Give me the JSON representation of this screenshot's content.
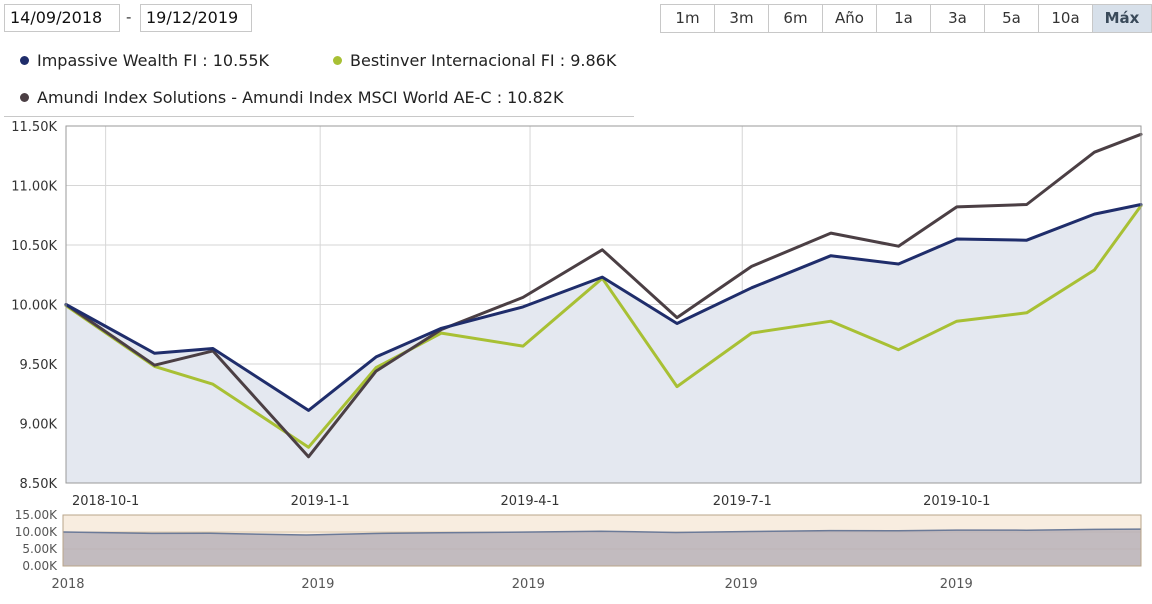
{
  "date_range": {
    "from": "14/09/2018",
    "separator": "-",
    "to": "19/12/2019"
  },
  "range_buttons": [
    {
      "label": "1m"
    },
    {
      "label": "3m"
    },
    {
      "label": "6m"
    },
    {
      "label": "Año"
    },
    {
      "label": "1a"
    },
    {
      "label": "3a"
    },
    {
      "label": "5a"
    },
    {
      "label": "10a"
    },
    {
      "label": "Máx",
      "active": true
    }
  ],
  "legend": [
    {
      "label": "Impassive Wealth FI : 10.55K",
      "color": "#1f2d6b"
    },
    {
      "label": "Bestinver Internacional FI : 9.86K",
      "color": "#a8c034"
    },
    {
      "label": "Amundi Index Solutions - Amundi Index MSCI World AE-C : 10.82K",
      "color": "#4b3f44"
    }
  ],
  "chart_data": {
    "type": "line",
    "x": [
      "2018-09-14",
      "2018-10-22",
      "2018-11-16",
      "2018-12-27",
      "2019-01-25",
      "2019-02-22",
      "2019-03-29",
      "2019-05-02",
      "2019-06-03",
      "2019-07-05",
      "2019-08-08",
      "2019-09-06",
      "2019-10-01",
      "2019-10-31",
      "2019-11-29",
      "2019-12-19"
    ],
    "series": [
      {
        "name": "Impassive Wealth FI",
        "color": "#1f2d6b",
        "filled": true,
        "values": [
          10000,
          9590,
          9630,
          9110,
          9560,
          9800,
          9980,
          10230,
          9840,
          10140,
          10410,
          10340,
          10550,
          10540,
          10760,
          10840
        ]
      },
      {
        "name": "Bestinver Internacional FI",
        "color": "#a8c034",
        "values": [
          9990,
          9480,
          9330,
          8800,
          9470,
          9760,
          9650,
          10220,
          9310,
          9760,
          9860,
          9620,
          9860,
          9930,
          10290,
          10830
        ]
      },
      {
        "name": "Amundi Index Solutions - Amundi Index MSCI World AE-C",
        "color": "#4b3f44",
        "values": [
          10000,
          9490,
          9610,
          8720,
          9440,
          9790,
          10060,
          10460,
          9890,
          10320,
          10600,
          10490,
          10820,
          10840,
          11280,
          11430
        ]
      }
    ],
    "ylim": [
      8500,
      11500
    ],
    "yticks": [
      "8.50K",
      "9.00K",
      "9.50K",
      "10.00K",
      "10.50K",
      "11.00K",
      "11.50K"
    ],
    "xticks": [
      {
        "date": "2018-10-01",
        "label": "2018-10-1"
      },
      {
        "date": "2019-01-01",
        "label": "2019-1-1"
      },
      {
        "date": "2019-04-01",
        "label": "2019-4-1"
      },
      {
        "date": "2019-07-01",
        "label": "2019-7-1"
      },
      {
        "date": "2019-10-01",
        "label": "2019-10-1"
      }
    ],
    "grid": true,
    "navigator": {
      "ylim": [
        0,
        15000
      ],
      "yticks": [
        "0.00K",
        "5.00K",
        "10.00K",
        "15.00K"
      ],
      "xticks": [
        {
          "date": "2018-09-14",
          "label": "2018"
        },
        {
          "date": "2019-01-01",
          "label": "2019"
        },
        {
          "date": "2019-04-01",
          "label": "2019"
        },
        {
          "date": "2019-07-01",
          "label": "2019"
        },
        {
          "date": "2019-10-01",
          "label": "2019"
        }
      ]
    }
  }
}
